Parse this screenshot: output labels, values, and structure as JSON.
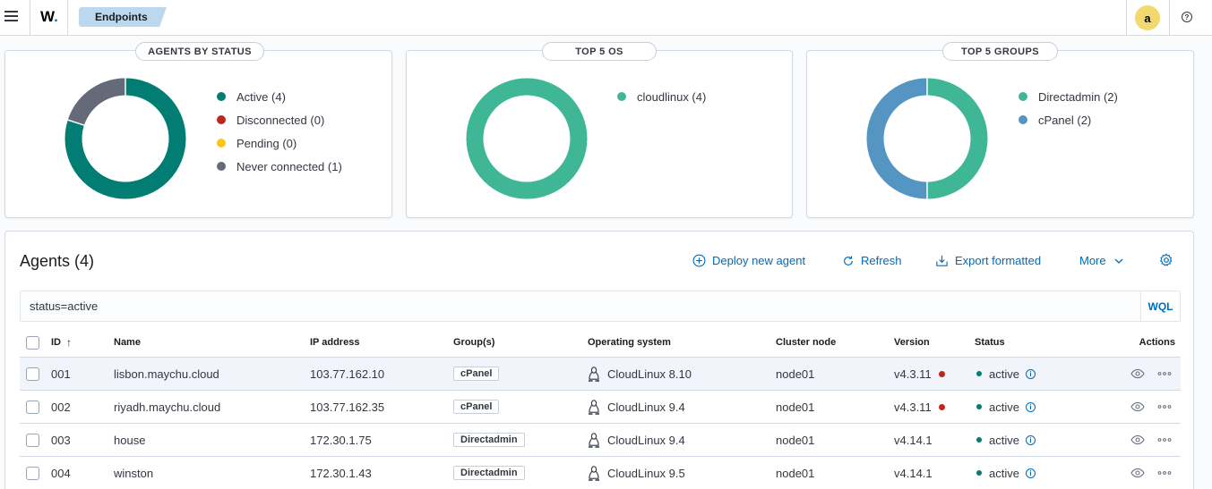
{
  "header": {
    "logo_text": "W",
    "logo_dot": ".",
    "breadcrumb": "Endpoints",
    "avatar_letter": "a",
    "help_icon_text": "?"
  },
  "panels": [
    {
      "title": "AGENTS BY STATUS",
      "legend": [
        {
          "label": "Active (4)",
          "color": "#017d73"
        },
        {
          "label": "Disconnected (0)",
          "color": "#bd271e"
        },
        {
          "label": "Pending (0)",
          "color": "#fec514"
        },
        {
          "label": "Never connected (1)",
          "color": "#646a77"
        }
      ]
    },
    {
      "title": "TOP 5 OS",
      "legend": [
        {
          "label": "cloudlinux (4)",
          "color": "#3fb797"
        }
      ]
    },
    {
      "title": "TOP 5 GROUPS",
      "legend": [
        {
          "label": "Directadmin (2)",
          "color": "#3fb797"
        },
        {
          "label": "cPanel (2)",
          "color": "#5495c3"
        }
      ]
    }
  ],
  "agents": {
    "title": "Agents (4)",
    "actions": {
      "deploy": "Deploy new agent",
      "refresh": "Refresh",
      "export": "Export formatted",
      "more": "More"
    },
    "search_value": "status=active",
    "wql_label": "WQL",
    "columns": {
      "id": "ID",
      "name": "Name",
      "ip": "IP address",
      "groups": "Group(s)",
      "os": "Operating system",
      "node": "Cluster node",
      "version": "Version",
      "status": "Status",
      "actions": "Actions"
    },
    "rows": [
      {
        "id": "001",
        "name": "lisbon.maychu.cloud",
        "ip": "103.77.162.10",
        "group": "cPanel",
        "os": "CloudLinux 8.10",
        "node": "node01",
        "version": "v4.3.11",
        "status": "active"
      },
      {
        "id": "002",
        "name": "riyadh.maychu.cloud",
        "ip": "103.77.162.35",
        "group": "cPanel",
        "os": "CloudLinux 9.4",
        "node": "node01",
        "version": "v4.3.11",
        "status": "active"
      },
      {
        "id": "003",
        "name": "house",
        "ip": "172.30.1.75",
        "group": "Directadmin",
        "os": "CloudLinux 9.4",
        "node": "node01",
        "version": "v4.14.1",
        "status": "active"
      },
      {
        "id": "004",
        "name": "winston",
        "ip": "172.30.1.43",
        "group": "Directadmin",
        "os": "CloudLinux 9.5",
        "node": "node01",
        "version": "v4.14.1",
        "status": "active"
      }
    ]
  }
}
